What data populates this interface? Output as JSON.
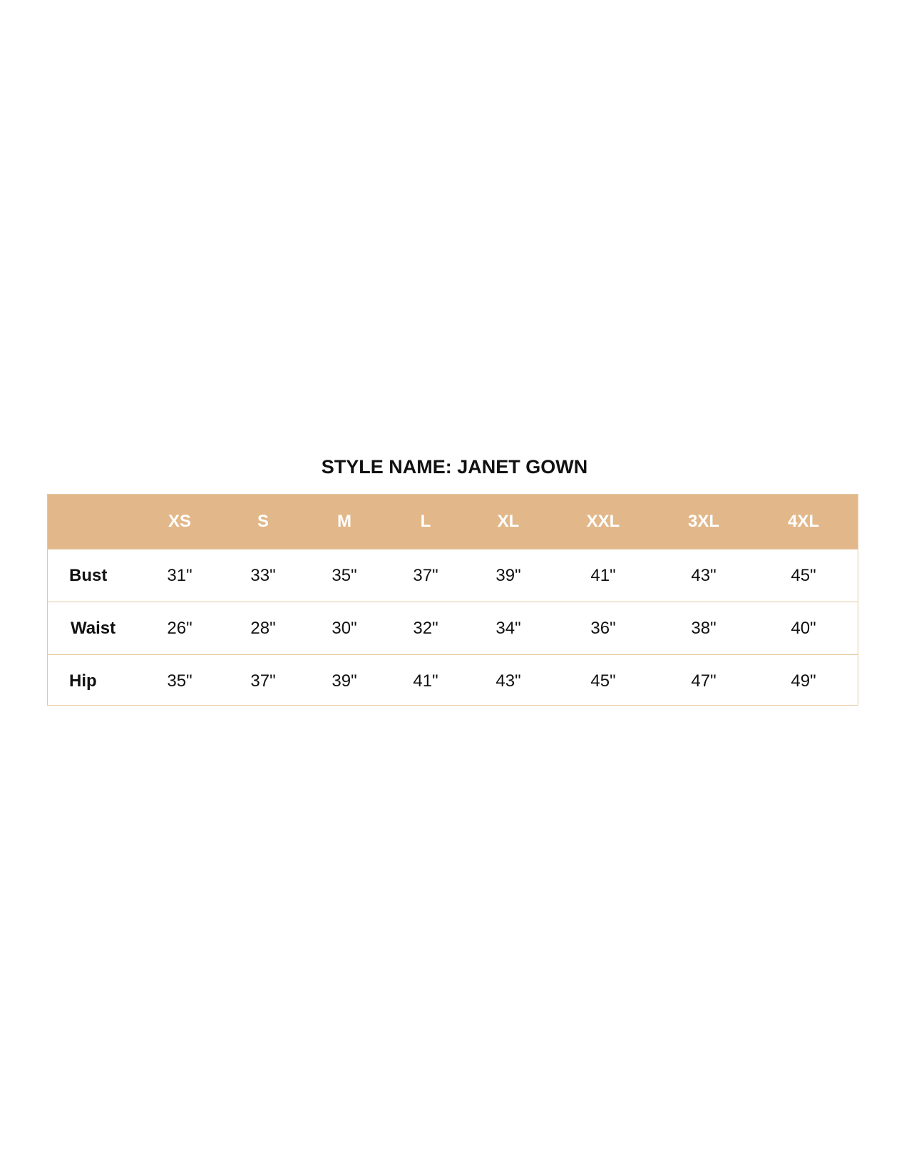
{
  "title": "STYLE NAME: JANET GOWN",
  "colors": {
    "header_bg": "#e2b88a",
    "border": "#e5c7a0"
  },
  "sizes": [
    "XS",
    "S",
    "M",
    "L",
    "XL",
    "XXL",
    "3XL",
    "4XL"
  ],
  "rows": [
    {
      "label": "Bust",
      "values": [
        "31\"",
        "33\"",
        "35\"",
        "37\"",
        "39\"",
        "41\"",
        "43\"",
        "45\""
      ]
    },
    {
      "label": "Waist",
      "values": [
        "26\"",
        "28\"",
        "30\"",
        "32\"",
        "34\"",
        "36\"",
        "38\"",
        "40\""
      ]
    },
    {
      "label": "Hip",
      "values": [
        "35\"",
        "37\"",
        "39\"",
        "41\"",
        "43\"",
        "45\"",
        "47\"",
        "49\""
      ]
    }
  ]
}
